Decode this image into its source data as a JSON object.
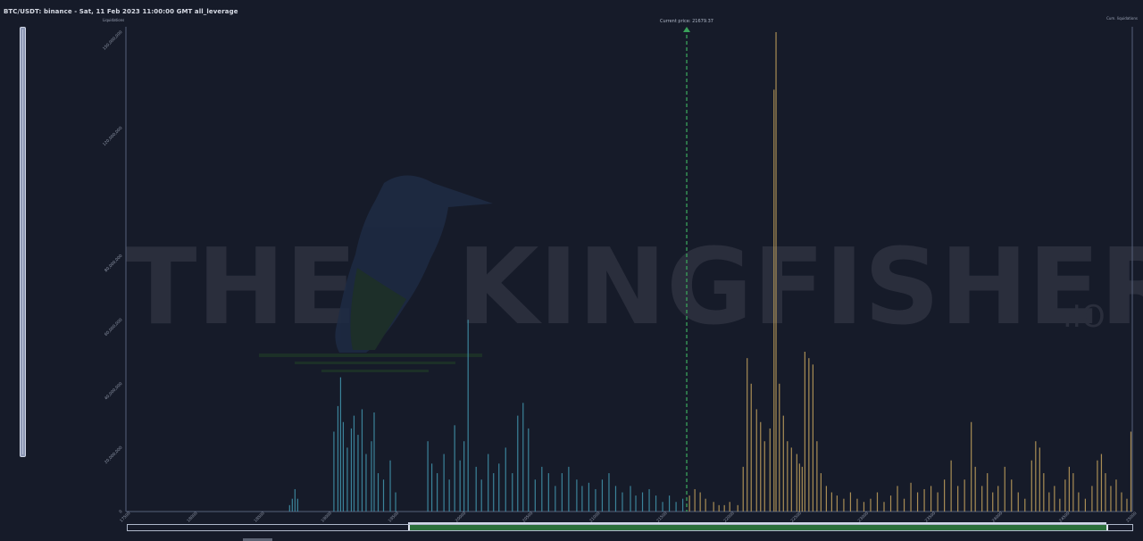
{
  "header": {
    "title": "BTC/USDT: binance - Sat, 11 Feb 2023 11:00:00 GMT all_leverage",
    "y_axis_title": "Liquidations",
    "cum_axis_title": "Cum. liquidations"
  },
  "watermark": {
    "text_left": "THE",
    "text_right": "KINGFISHER",
    "suffix": ".IO"
  },
  "current_price_label": "Current price: 21679.37",
  "colors": {
    "background": "#161b29",
    "long_bars": "#3f8fa6",
    "short_bars": "#b99a5a",
    "current_price_line": "#3aa35a",
    "watermark": "#2c3040"
  },
  "chart_data": {
    "type": "bar",
    "title": "BTC/USDT: binance - Sat, 11 Feb 2023 11:00:00 GMT all_leverage",
    "ylabel": "Liquidations",
    "xlabel": "",
    "ylim": [
      0,
      150000000
    ],
    "xlim": [
      17500,
      25000
    ],
    "y_ticks": [
      "0",
      "20,000,000",
      "40,000,000",
      "60,000,000",
      "80,000,000",
      "120,000,000",
      "150,000,000"
    ],
    "y_tick_values": [
      0,
      20000000,
      40000000,
      60000000,
      80000000,
      120000000,
      150000000
    ],
    "x_ticks": [
      "17500",
      "18000",
      "18500",
      "19000",
      "19500",
      "20000",
      "20500",
      "21000",
      "21500",
      "22000",
      "22500",
      "23000",
      "23500",
      "24000",
      "24500",
      "25000"
    ],
    "x_tick_values": [
      17500,
      18000,
      18500,
      19000,
      19500,
      20000,
      20500,
      21000,
      21500,
      22000,
      22500,
      23000,
      23500,
      24000,
      24500,
      25000
    ],
    "current_price": 21679.37,
    "grid": false,
    "series": [
      {
        "name": "",
        "color": "#3f8fa6",
        "values": [
          [
            18720,
            2000000
          ],
          [
            18740,
            4000000
          ],
          [
            18760,
            7000000
          ],
          [
            18780,
            4000000
          ],
          [
            19050,
            25000000
          ],
          [
            19080,
            33000000
          ],
          [
            19100,
            42000000
          ],
          [
            19120,
            28000000
          ],
          [
            19150,
            20000000
          ],
          [
            19180,
            26000000
          ],
          [
            19200,
            30000000
          ],
          [
            19230,
            24000000
          ],
          [
            19260,
            32000000
          ],
          [
            19290,
            18000000
          ],
          [
            19330,
            22000000
          ],
          [
            19350,
            31000000
          ],
          [
            19380,
            12000000
          ],
          [
            19420,
            10000000
          ],
          [
            19470,
            16000000
          ],
          [
            19510,
            6000000
          ],
          [
            19750,
            22000000
          ],
          [
            19780,
            15000000
          ],
          [
            19820,
            12000000
          ],
          [
            19870,
            18000000
          ],
          [
            19910,
            10000000
          ],
          [
            19950,
            27000000
          ],
          [
            19990,
            16000000
          ],
          [
            20050,
            60000000
          ],
          [
            20020,
            22000000
          ],
          [
            20110,
            14000000
          ],
          [
            20150,
            10000000
          ],
          [
            20200,
            18000000
          ],
          [
            20240,
            12000000
          ],
          [
            20280,
            15000000
          ],
          [
            20330,
            20000000
          ],
          [
            20380,
            12000000
          ],
          [
            20420,
            30000000
          ],
          [
            20460,
            34000000
          ],
          [
            20500,
            26000000
          ],
          [
            20550,
            10000000
          ],
          [
            20600,
            14000000
          ],
          [
            20650,
            12000000
          ],
          [
            20700,
            8000000
          ],
          [
            20750,
            12000000
          ],
          [
            20800,
            14000000
          ],
          [
            20860,
            10000000
          ],
          [
            20900,
            8000000
          ],
          [
            20950,
            9000000
          ],
          [
            21000,
            7000000
          ],
          [
            21050,
            10000000
          ],
          [
            21100,
            12000000
          ],
          [
            21150,
            8000000
          ],
          [
            21200,
            6000000
          ],
          [
            21260,
            8000000
          ],
          [
            21300,
            5000000
          ],
          [
            21350,
            6000000
          ],
          [
            21400,
            7000000
          ],
          [
            21450,
            5000000
          ],
          [
            21500,
            3000000
          ],
          [
            21550,
            5000000
          ],
          [
            21600,
            3000000
          ],
          [
            21650,
            4000000
          ]
        ]
      },
      {
        "name": "",
        "color": "#b99a5a",
        "values": [
          [
            21700,
            5000000
          ],
          [
            21740,
            7000000
          ],
          [
            21780,
            6000000
          ],
          [
            21820,
            4000000
          ],
          [
            21880,
            3000000
          ],
          [
            21920,
            2000000
          ],
          [
            21960,
            2000000
          ],
          [
            22000,
            3000000
          ],
          [
            22060,
            2000000
          ],
          [
            22100,
            14000000
          ],
          [
            22130,
            48000000
          ],
          [
            22160,
            40000000
          ],
          [
            22200,
            32000000
          ],
          [
            22230,
            28000000
          ],
          [
            22260,
            22000000
          ],
          [
            22300,
            26000000
          ],
          [
            22330,
            132000000
          ],
          [
            22345,
            150000000
          ],
          [
            22370,
            40000000
          ],
          [
            22400,
            30000000
          ],
          [
            22430,
            22000000
          ],
          [
            22460,
            20000000
          ],
          [
            22500,
            18000000
          ],
          [
            22520,
            15000000
          ],
          [
            22540,
            14000000
          ],
          [
            22560,
            50000000
          ],
          [
            22590,
            48000000
          ],
          [
            22620,
            46000000
          ],
          [
            22650,
            22000000
          ],
          [
            22680,
            12000000
          ],
          [
            22720,
            8000000
          ],
          [
            22760,
            6000000
          ],
          [
            22800,
            5000000
          ],
          [
            22850,
            4000000
          ],
          [
            22900,
            6000000
          ],
          [
            22950,
            4000000
          ],
          [
            23000,
            3000000
          ],
          [
            23050,
            4000000
          ],
          [
            23100,
            6000000
          ],
          [
            23150,
            3000000
          ],
          [
            23200,
            5000000
          ],
          [
            23250,
            8000000
          ],
          [
            23300,
            4000000
          ],
          [
            23350,
            9000000
          ],
          [
            23400,
            6000000
          ],
          [
            23450,
            7000000
          ],
          [
            23500,
            8000000
          ],
          [
            23550,
            6000000
          ],
          [
            23600,
            10000000
          ],
          [
            23650,
            16000000
          ],
          [
            23700,
            8000000
          ],
          [
            23750,
            10000000
          ],
          [
            23800,
            28000000
          ],
          [
            23830,
            14000000
          ],
          [
            23880,
            8000000
          ],
          [
            23920,
            12000000
          ],
          [
            23960,
            6000000
          ],
          [
            24000,
            8000000
          ],
          [
            24050,
            14000000
          ],
          [
            24100,
            10000000
          ],
          [
            24150,
            6000000
          ],
          [
            24200,
            4000000
          ],
          [
            24250,
            16000000
          ],
          [
            24280,
            22000000
          ],
          [
            24310,
            20000000
          ],
          [
            24340,
            12000000
          ],
          [
            24380,
            6000000
          ],
          [
            24420,
            8000000
          ],
          [
            24460,
            4000000
          ],
          [
            24500,
            10000000
          ],
          [
            24530,
            14000000
          ],
          [
            24560,
            12000000
          ],
          [
            24600,
            6000000
          ],
          [
            24650,
            4000000
          ],
          [
            24700,
            8000000
          ],
          [
            24740,
            16000000
          ],
          [
            24770,
            18000000
          ],
          [
            24800,
            12000000
          ],
          [
            24840,
            8000000
          ],
          [
            24880,
            10000000
          ],
          [
            24920,
            6000000
          ],
          [
            24960,
            4000000
          ],
          [
            24990,
            25000000
          ]
        ]
      }
    ]
  }
}
